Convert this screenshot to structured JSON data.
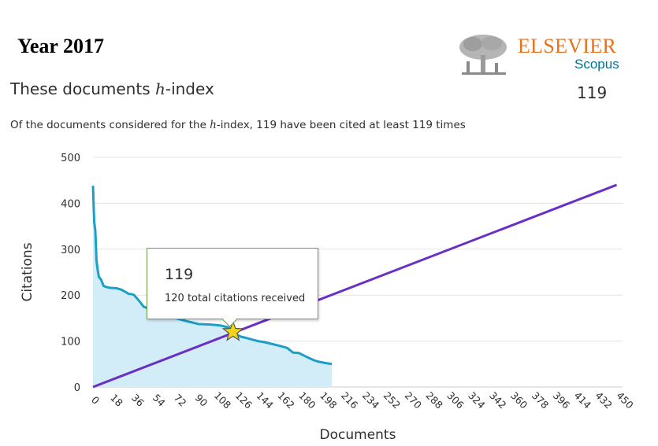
{
  "header": {
    "year": "Year 2017",
    "brand": "ELSEVIER",
    "product": "Scopus"
  },
  "summary": {
    "title_prefix": "These documents ",
    "title_italic": "h",
    "title_suffix": "-index",
    "value": "119",
    "desc_prefix": "Of the documents considered for the ",
    "desc_italic": "h",
    "desc_suffix": "-index, 119 have been cited at least 119 times"
  },
  "tooltip": {
    "value": "119",
    "text": "120 total citations received"
  },
  "colors": {
    "citations_line": "#1b9fc6",
    "citations_fill": "#d2edf8",
    "hindex_line": "#6a2fc3",
    "star": "#f7d21b",
    "grid": "#e3e3e3"
  },
  "chart_data": {
    "type": "area",
    "xlabel": "Documents",
    "ylabel": "Citations",
    "xlim": [
      0,
      450
    ],
    "ylim": [
      0,
      500
    ],
    "x_ticks": [
      0,
      18,
      36,
      54,
      72,
      90,
      108,
      126,
      144,
      162,
      180,
      198,
      216,
      234,
      252,
      270,
      288,
      306,
      324,
      342,
      360,
      378,
      396,
      414,
      432,
      450
    ],
    "y_ticks": [
      0,
      100,
      200,
      300,
      400,
      500
    ],
    "grid": "horizontal",
    "series": [
      {
        "kind": "area",
        "x": [
          0,
          1,
          2,
          3,
          4,
          5,
          7,
          9,
          11,
          14,
          20,
          24,
          29,
          30,
          33,
          35,
          40,
          43,
          48,
          50,
          52,
          55,
          60,
          70,
          80,
          85,
          90,
          100,
          108,
          115,
          119,
          125,
          130,
          140,
          145,
          150,
          158,
          165,
          170,
          175,
          182,
          188,
          192,
          198,
          203
        ],
        "y": [
          438,
          360,
          340,
          275,
          255,
          240,
          233,
          220,
          218,
          216,
          215,
          212,
          205,
          203,
          202,
          200,
          185,
          175,
          170,
          165,
          160,
          158,
          155,
          150,
          143,
          140,
          137,
          136,
          134,
          130,
          120,
          110,
          107,
          100,
          98,
          95,
          90,
          85,
          75,
          74,
          65,
          58,
          55,
          52,
          50
        ]
      },
      {
        "kind": "line",
        "x": [
          0,
          445
        ],
        "y": [
          0,
          440
        ]
      }
    ],
    "highlight": {
      "x": 119,
      "y": 120
    }
  }
}
